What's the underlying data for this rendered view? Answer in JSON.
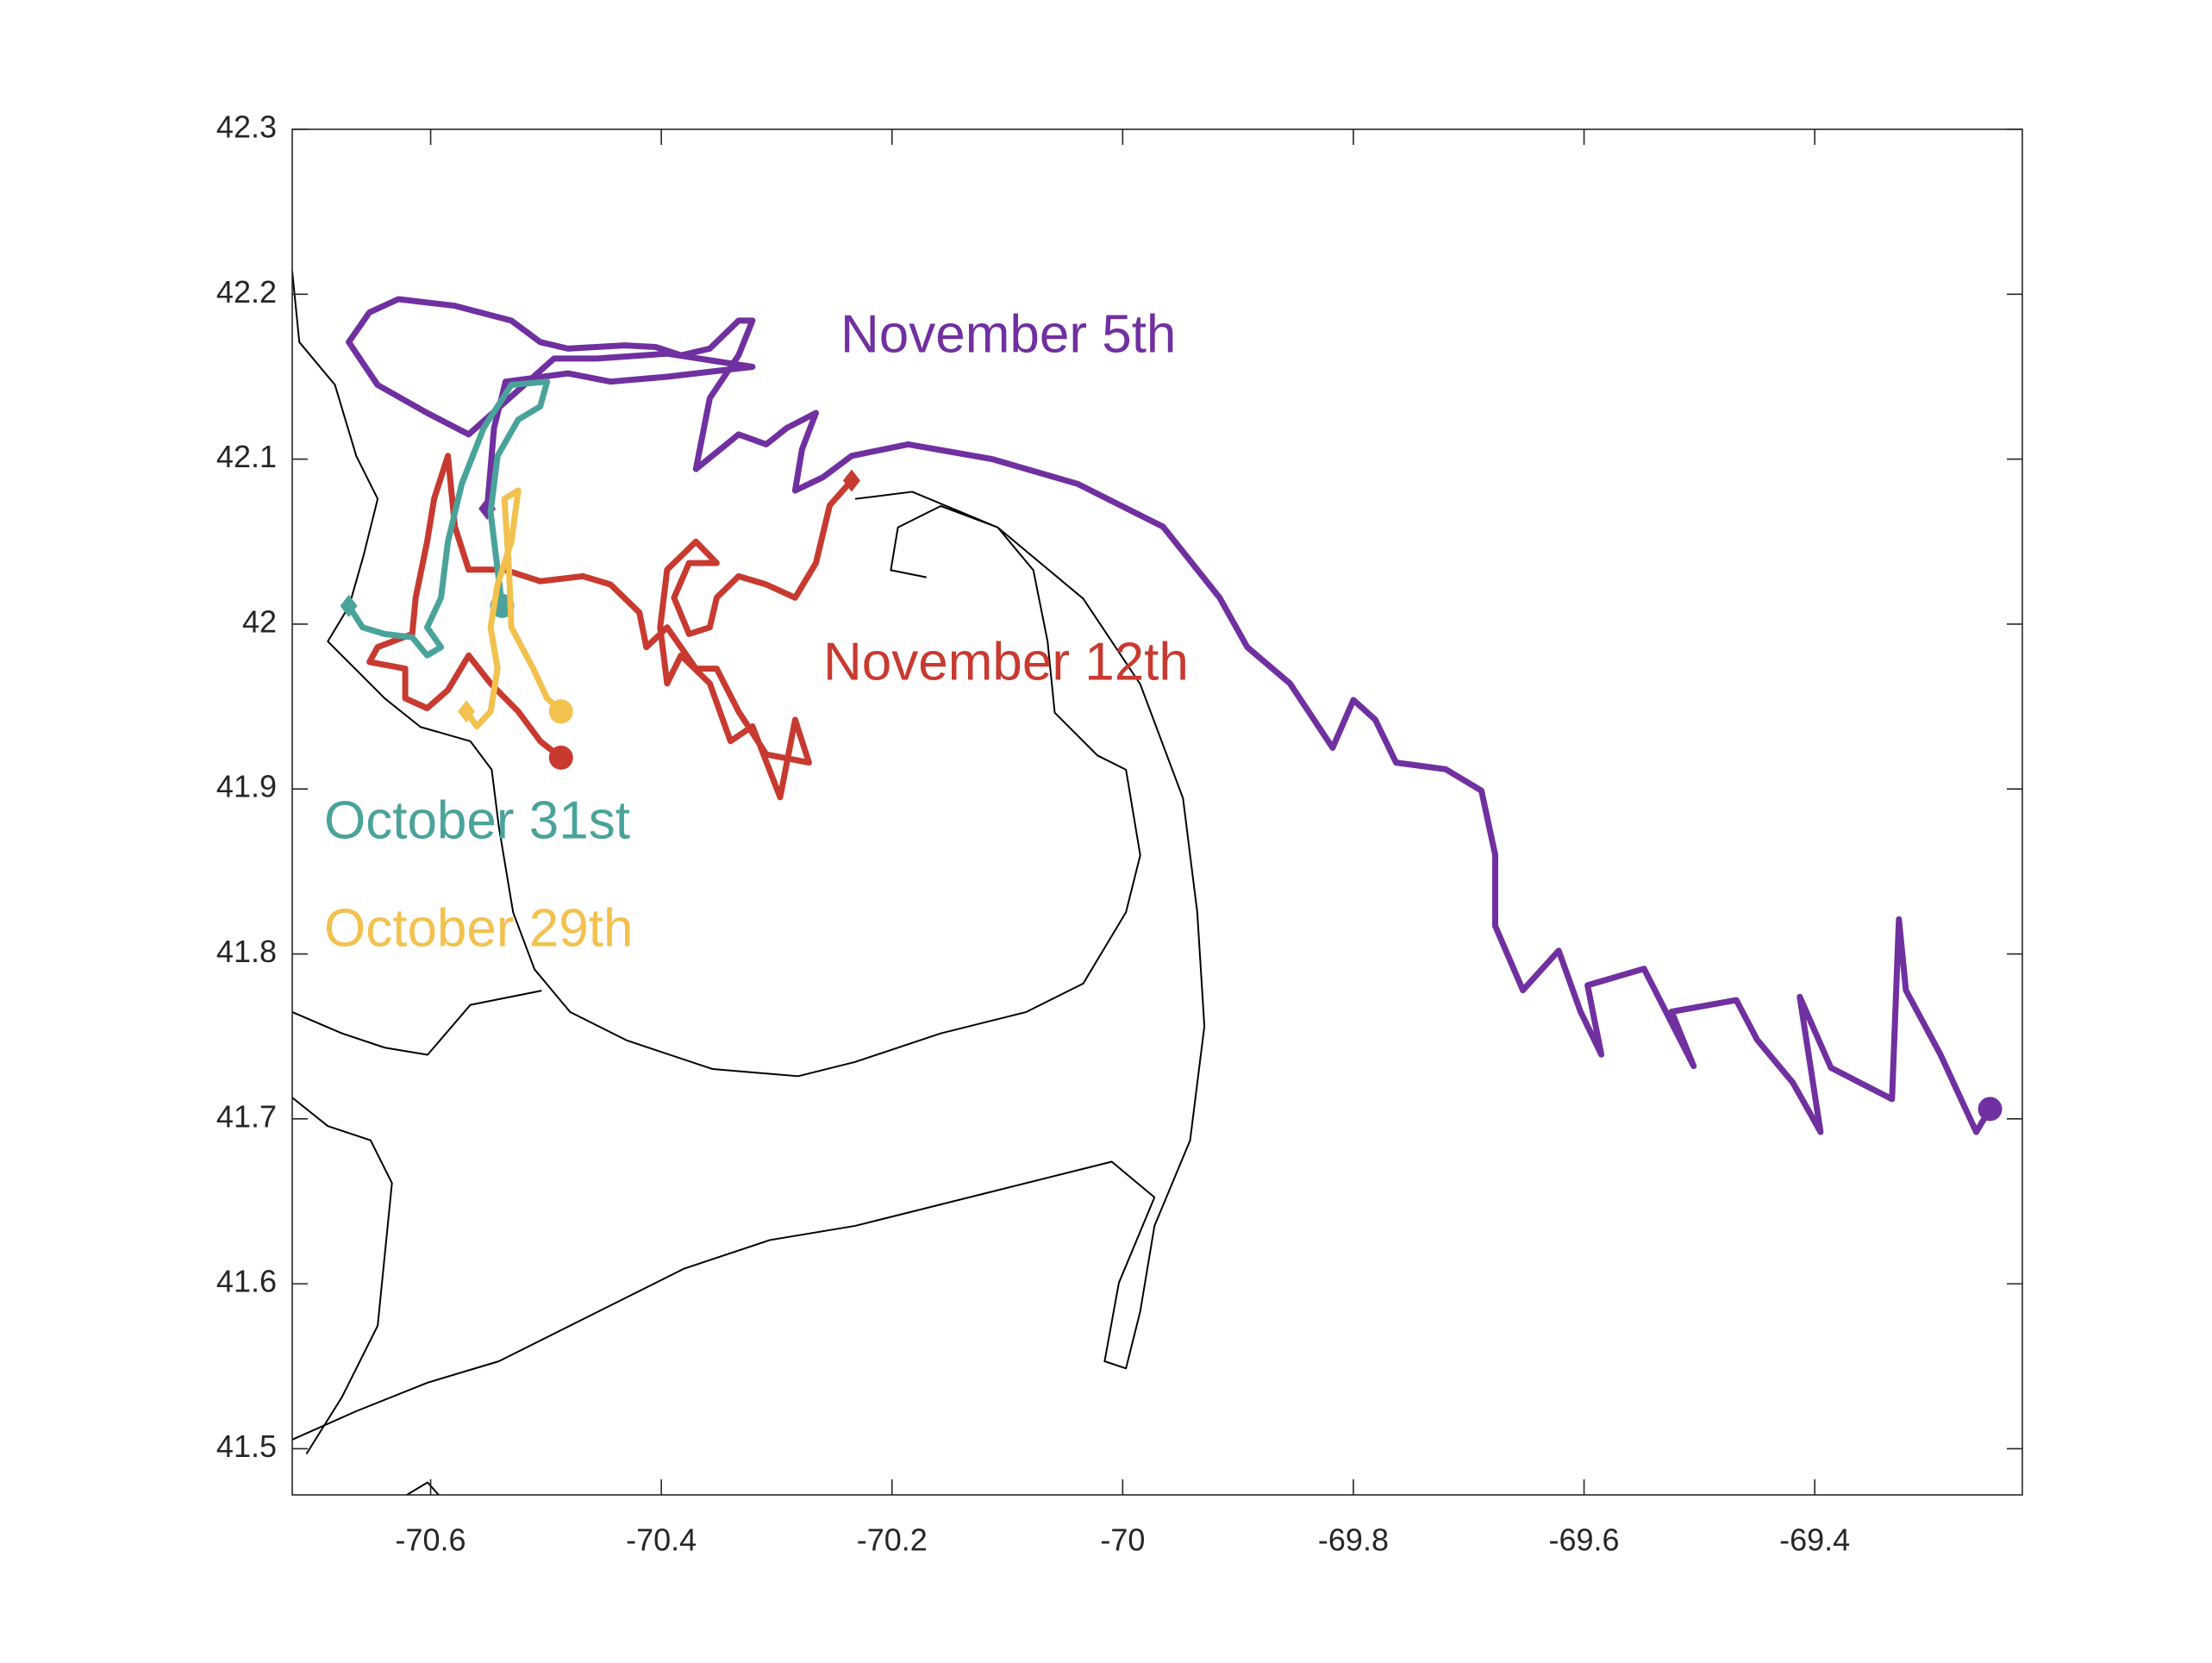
{
  "chart_data": {
    "type": "line",
    "xlim": [
      -70.72,
      -69.22
    ],
    "ylim": [
      41.472,
      42.3
    ],
    "xticks": [
      -70.6,
      -70.4,
      -70.2,
      -70,
      -69.8,
      -69.6,
      -69.4
    ],
    "yticks": [
      41.5,
      41.6,
      41.7,
      41.8,
      41.9,
      42,
      42.1,
      42.2,
      42.3
    ],
    "series": [
      {
        "name": "November 5th",
        "color": "#7030a0",
        "x": [
          -70.551,
          -70.545,
          -70.535,
          -70.481,
          -70.444,
          -70.395,
          -70.321,
          -70.395,
          -70.456,
          -70.493,
          -70.567,
          -70.603,
          -70.646,
          -70.671,
          -70.653,
          -70.628,
          -70.579,
          -70.53,
          -70.505,
          -70.481,
          -70.432,
          -70.405,
          -70.383,
          -70.358,
          -70.333,
          -70.321,
          -70.333,
          -70.358,
          -70.37,
          -70.333,
          -70.309,
          -70.291,
          -70.266,
          -70.278,
          -70.284,
          -70.26,
          -70.235,
          -70.186,
          -70.113,
          -70.039,
          -69.965,
          -69.916,
          -69.892,
          -69.855,
          -69.818,
          -69.8,
          -69.781,
          -69.763,
          -69.72,
          -69.689,
          -69.677,
          -69.677,
          -69.653,
          -69.622,
          -69.603,
          -69.585,
          -69.597,
          -69.548,
          -69.505,
          -69.524,
          -69.468,
          -69.45,
          -69.419,
          -69.395,
          -69.413,
          -69.386,
          -69.333,
          -69.327,
          -69.321,
          -69.291,
          -69.26,
          -69.248
        ],
        "values": [
          42.07,
          42.119,
          42.147,
          42.152,
          42.147,
          42.15,
          42.156,
          42.164,
          42.161,
          42.161,
          42.115,
          42.128,
          42.145,
          42.171,
          42.189,
          42.197,
          42.193,
          42.184,
          42.171,
          42.167,
          42.169,
          42.168,
          42.163,
          42.167,
          42.184,
          42.184,
          42.163,
          42.137,
          42.094,
          42.115,
          42.109,
          42.119,
          42.128,
          42.106,
          42.081,
          42.089,
          42.102,
          42.109,
          42.1,
          42.085,
          42.059,
          42.016,
          41.986,
          41.964,
          41.925,
          41.954,
          41.942,
          41.916,
          41.912,
          41.899,
          41.86,
          41.817,
          41.778,
          41.802,
          41.765,
          41.739,
          41.781,
          41.791,
          41.732,
          41.765,
          41.772,
          41.748,
          41.722,
          41.692,
          41.774,
          41.731,
          41.712,
          41.821,
          41.778,
          41.739,
          41.692,
          41.706
        ]
      },
      {
        "name": "November 12th",
        "color": "#c83a30",
        "x": [
          -70.235,
          -70.254,
          -70.266,
          -70.284,
          -70.309,
          -70.333,
          -70.352,
          -70.358,
          -70.376,
          -70.389,
          -70.376,
          -70.352,
          -70.37,
          -70.395,
          -70.401,
          -70.395,
          -70.383,
          -70.358,
          -70.34,
          -70.321,
          -70.297,
          -70.284,
          -70.272,
          -70.309,
          -70.333,
          -70.352,
          -70.37,
          -70.395,
          -70.413,
          -70.419,
          -70.444,
          -70.468,
          -70.505,
          -70.536,
          -70.567,
          -70.579,
          -70.585,
          -70.597,
          -70.603,
          -70.613,
          -70.616,
          -70.646,
          -70.653,
          -70.622,
          -70.622,
          -70.603,
          -70.585,
          -70.567,
          -70.548,
          -70.524,
          -70.505,
          -70.487
        ],
        "values": [
          42.087,
          42.072,
          42.037,
          42.016,
          42.024,
          42.029,
          42.016,
          41.998,
          41.994,
          42.016,
          42.037,
          42.037,
          42.05,
          42.033,
          41.998,
          41.964,
          41.981,
          41.964,
          41.929,
          41.938,
          41.895,
          41.942,
          41.916,
          41.921,
          41.947,
          41.973,
          41.973,
          41.998,
          41.986,
          42.007,
          42.024,
          42.029,
          42.026,
          42.033,
          42.033,
          42.059,
          42.102,
          42.076,
          42.05,
          42.016,
          41.994,
          41.986,
          41.977,
          41.973,
          41.955,
          41.949,
          41.96,
          41.981,
          41.964,
          41.947,
          41.929,
          41.919
        ]
      },
      {
        "name": "October 31st",
        "color": "#4aa39a",
        "x": [
          -70.671,
          -70.659,
          -70.64,
          -70.616,
          -70.603,
          -70.591,
          -70.603,
          -70.591,
          -70.585,
          -70.573,
          -70.554,
          -70.53,
          -70.499,
          -70.505,
          -70.524,
          -70.542,
          -70.548,
          -70.542,
          -70.538
        ],
        "values": [
          42.011,
          41.998,
          41.994,
          41.992,
          41.981,
          41.986,
          41.998,
          42.016,
          42.05,
          42.085,
          42.119,
          42.145,
          42.147,
          42.132,
          42.124,
          42.102,
          42.068,
          42.033,
          42.011
        ]
      },
      {
        "name": "October 29th",
        "color": "#f2c14e",
        "x": [
          -70.569,
          -70.56,
          -70.548,
          -70.542,
          -70.548,
          -70.542,
          -70.53,
          -70.524,
          -70.536,
          -70.532,
          -70.53,
          -70.511,
          -70.499,
          -70.487
        ],
        "values": [
          41.947,
          41.938,
          41.947,
          41.973,
          41.998,
          42.024,
          42.05,
          42.081,
          42.076,
          42.033,
          41.998,
          41.973,
          41.955,
          41.947
        ]
      }
    ]
  }
}
